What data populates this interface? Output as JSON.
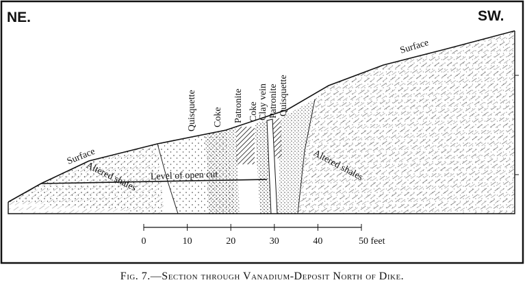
{
  "header": {
    "left": "NE.",
    "right": "SW."
  },
  "labels": {
    "surface_left": "Surface",
    "surface_right": "Surface",
    "strata": [
      "Quisquette",
      "Coke",
      "Patronite",
      "Coke",
      "Clay vein",
      "Patronite",
      "Quisquette"
    ],
    "open_cut": "Level of open cut",
    "shales_left": "Altered shales",
    "shales_right": "Altered shales"
  },
  "scale": [
    "0",
    "10",
    "20",
    "30",
    "40",
    "50 feet"
  ],
  "caption": "Fig. 7.—Section through Vanadium-Deposit North of Dike."
}
